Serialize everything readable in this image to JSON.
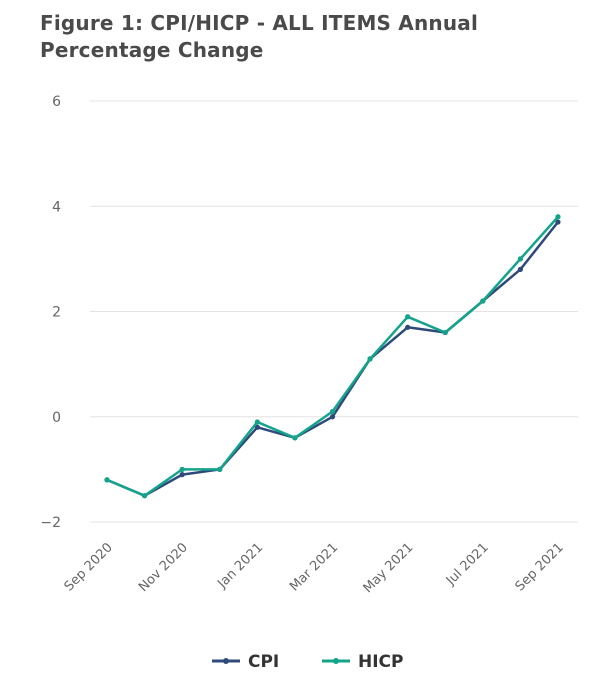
{
  "chart_data": {
    "type": "line",
    "title": "Figure 1: CPI/HICP - ALL ITEMS Annual Percentage Change",
    "x": [
      "Sep 2020",
      "Oct 2020",
      "Nov 2020",
      "Dec 2020",
      "Jan 2021",
      "Feb 2021",
      "Mar 2021",
      "Apr 2021",
      "May 2021",
      "Jun 2021",
      "Jul 2021",
      "Aug 2021",
      "Sep 2021"
    ],
    "x_tick_labels": [
      "Sep 2020",
      "Nov 2020",
      "Jan 2021",
      "Mar 2021",
      "May 2021",
      "Jul 2021",
      "Sep 2021"
    ],
    "ylim": [
      -2,
      6
    ],
    "y_ticks": [
      "-2",
      "0",
      "2",
      "4",
      "6"
    ],
    "grid": true,
    "legend_position": "bottom-center",
    "series": [
      {
        "name": "CPI",
        "color": "#2e4a7a",
        "values": [
          -1.2,
          -1.5,
          -1.1,
          -1.0,
          -0.2,
          -0.4,
          0.0,
          1.1,
          1.7,
          1.6,
          2.2,
          2.8,
          3.7
        ]
      },
      {
        "name": "HICP",
        "color": "#14a38b",
        "values": [
          -1.2,
          -1.5,
          -1.0,
          -1.0,
          -0.1,
          -0.4,
          0.1,
          1.1,
          1.9,
          1.6,
          2.2,
          3.0,
          3.8
        ]
      }
    ]
  }
}
